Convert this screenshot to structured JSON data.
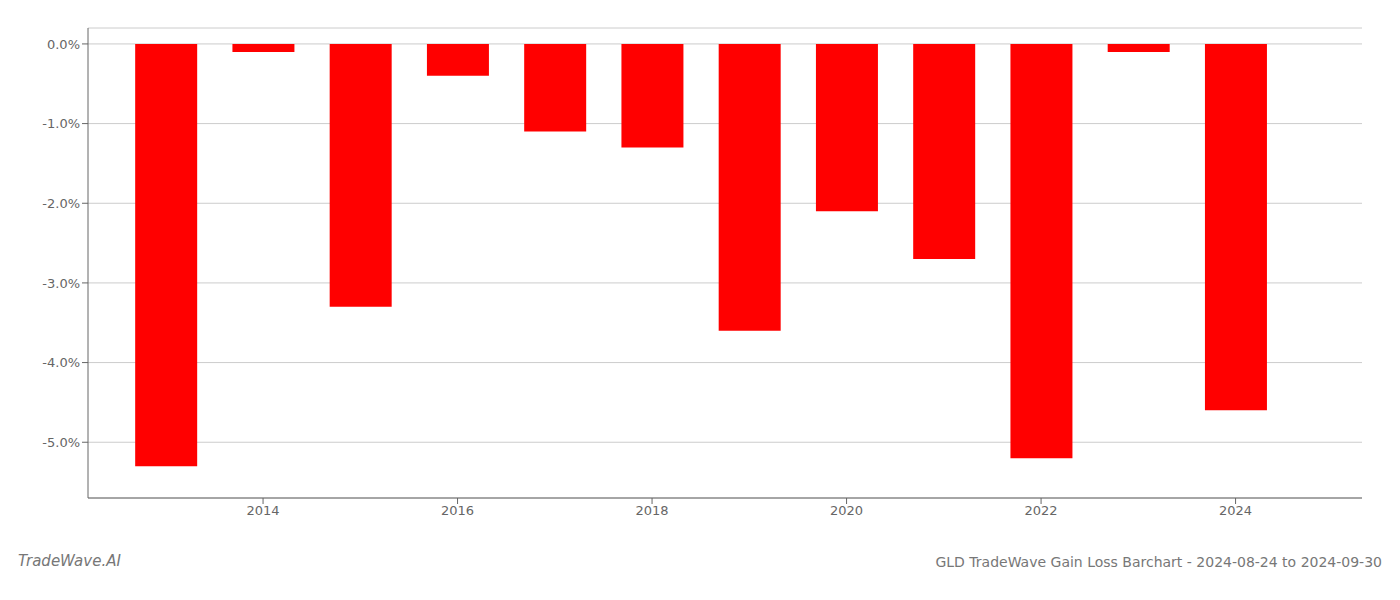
{
  "chart_data": {
    "type": "bar",
    "title": "GLD TradeWave Gain Loss Barchart - 2024-08-24 to 2024-09-30",
    "annotations": [
      "TradeWave.AI"
    ],
    "x": [
      2013,
      2014,
      2015,
      2016,
      2017,
      2018,
      2019,
      2020,
      2021,
      2022,
      2023,
      2024
    ],
    "values": [
      -0.053,
      -0.001,
      -0.033,
      -0.004,
      -0.011,
      -0.013,
      -0.036,
      -0.021,
      -0.027,
      -0.052,
      -0.001,
      -0.046
    ],
    "color": "#ff0000",
    "xlim": [
      2012.2,
      2025.3
    ],
    "xticks": [
      2014,
      2016,
      2018,
      2020,
      2022,
      2024
    ],
    "ylim": [
      -0.057,
      0.002
    ],
    "yticks": [
      {
        "value": -0.05,
        "label": "-5.0%"
      },
      {
        "value": -0.04,
        "label": "-4.0%"
      },
      {
        "value": -0.03,
        "label": "-3.0%"
      },
      {
        "value": -0.02,
        "label": "-2.0%"
      },
      {
        "value": -0.01,
        "label": "-1.0%"
      },
      {
        "value": 0.0,
        "label": "0.0%"
      }
    ],
    "grid": true
  }
}
